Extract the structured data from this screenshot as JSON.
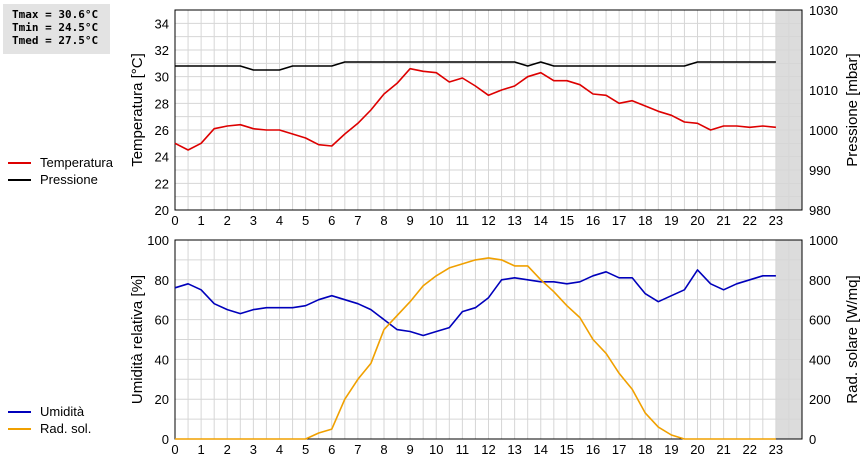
{
  "stats": {
    "tmax": "Tmax = 30.6°C",
    "tmin": "Tmin = 24.5°C",
    "tmed": "Tmed = 27.5°C"
  },
  "legend_top": [
    {
      "label": "Temperatura",
      "color": "#dd0000"
    },
    {
      "label": "Pressione",
      "color": "#000000"
    }
  ],
  "legend_bottom": [
    {
      "label": "Umidità",
      "color": "#0000bb"
    },
    {
      "label": "Rad. sol.",
      "color": "#f0a000"
    }
  ],
  "chart_data": [
    {
      "type": "line",
      "xlabel": "",
      "ylabel": "Temperatura [°C]",
      "y2label": "Pressione [mbar]",
      "x_ticks": [
        "0",
        "1",
        "2",
        "3",
        "4",
        "5",
        "6",
        "7",
        "8",
        "9",
        "10",
        "11",
        "12",
        "13",
        "14",
        "15",
        "16",
        "17",
        "18",
        "19",
        "20",
        "21",
        "22",
        "23"
      ],
      "xlim": [
        0,
        24
      ],
      "ylim": [
        20,
        35
      ],
      "y_ticks": [
        20,
        22,
        24,
        26,
        28,
        30,
        32,
        34
      ],
      "y2lim": [
        980,
        1030
      ],
      "y2_ticks": [
        980,
        990,
        1000,
        1010,
        1020,
        1030
      ],
      "shaded_range": [
        23,
        24
      ],
      "series": [
        {
          "name": "Temperatura",
          "axis": "left",
          "color": "#dd0000",
          "points": [
            [
              0,
              25.0
            ],
            [
              0.5,
              24.5
            ],
            [
              1,
              25.0
            ],
            [
              1.5,
              26.1
            ],
            [
              2,
              26.3
            ],
            [
              2.5,
              26.4
            ],
            [
              3,
              26.1
            ],
            [
              3.5,
              26.0
            ],
            [
              4,
              26.0
            ],
            [
              4.5,
              25.7
            ],
            [
              5,
              25.4
            ],
            [
              5.5,
              24.9
            ],
            [
              6,
              24.8
            ],
            [
              6.5,
              25.7
            ],
            [
              7,
              26.5
            ],
            [
              7.5,
              27.5
            ],
            [
              8,
              28.7
            ],
            [
              8.5,
              29.5
            ],
            [
              9,
              30.6
            ],
            [
              9.5,
              30.4
            ],
            [
              10,
              30.3
            ],
            [
              10.5,
              29.6
            ],
            [
              11,
              29.9
            ],
            [
              11.5,
              29.3
            ],
            [
              12,
              28.6
            ],
            [
              12.5,
              29.0
            ],
            [
              13,
              29.3
            ],
            [
              13.5,
              30.0
            ],
            [
              14,
              30.3
            ],
            [
              14.5,
              29.7
            ],
            [
              15,
              29.7
            ],
            [
              15.5,
              29.4
            ],
            [
              16,
              28.7
            ],
            [
              16.5,
              28.6
            ],
            [
              17,
              28.0
            ],
            [
              17.5,
              28.2
            ],
            [
              18,
              27.8
            ],
            [
              18.5,
              27.4
            ],
            [
              19,
              27.1
            ],
            [
              19.5,
              26.6
            ],
            [
              20,
              26.5
            ],
            [
              20.5,
              26.0
            ],
            [
              21,
              26.3
            ],
            [
              21.5,
              26.3
            ],
            [
              22,
              26.2
            ],
            [
              22.5,
              26.3
            ],
            [
              23,
              26.2
            ]
          ]
        },
        {
          "name": "Pressione",
          "axis": "right",
          "color": "#000000",
          "points": [
            [
              0,
              1016
            ],
            [
              2.5,
              1016
            ],
            [
              3,
              1015
            ],
            [
              4,
              1015
            ],
            [
              4.5,
              1016
            ],
            [
              6,
              1016
            ],
            [
              6.5,
              1017
            ],
            [
              13,
              1017
            ],
            [
              13.5,
              1016
            ],
            [
              14,
              1017
            ],
            [
              14.5,
              1016
            ],
            [
              19.5,
              1016
            ],
            [
              20,
              1017
            ],
            [
              23,
              1017
            ]
          ]
        }
      ]
    },
    {
      "type": "line",
      "xlabel": "",
      "ylabel": "Umidità relativa [%]",
      "y2label": "Rad. solare [W/mq]",
      "x_ticks": [
        "0",
        "1",
        "2",
        "3",
        "4",
        "5",
        "6",
        "7",
        "8",
        "9",
        "10",
        "11",
        "12",
        "13",
        "14",
        "15",
        "16",
        "17",
        "18",
        "19",
        "20",
        "21",
        "22",
        "23"
      ],
      "xlim": [
        0,
        24
      ],
      "ylim": [
        0,
        100
      ],
      "y_ticks": [
        0,
        20,
        40,
        60,
        80,
        100
      ],
      "y2lim": [
        0,
        1000
      ],
      "y2_ticks": [
        0,
        200,
        400,
        600,
        800,
        1000
      ],
      "shaded_range": [
        23,
        24
      ],
      "series": [
        {
          "name": "Umidità",
          "axis": "left",
          "color": "#0000bb",
          "points": [
            [
              0,
              76
            ],
            [
              0.5,
              78
            ],
            [
              1,
              75
            ],
            [
              1.5,
              68
            ],
            [
              2,
              65
            ],
            [
              2.5,
              63
            ],
            [
              3,
              65
            ],
            [
              3.5,
              66
            ],
            [
              4,
              66
            ],
            [
              4.5,
              66
            ],
            [
              5,
              67
            ],
            [
              5.5,
              70
            ],
            [
              6,
              72
            ],
            [
              6.5,
              70
            ],
            [
              7,
              68
            ],
            [
              7.5,
              65
            ],
            [
              8,
              60
            ],
            [
              8.5,
              55
            ],
            [
              9,
              54
            ],
            [
              9.5,
              52
            ],
            [
              10,
              54
            ],
            [
              10.5,
              56
            ],
            [
              11,
              64
            ],
            [
              11.5,
              66
            ],
            [
              12,
              71
            ],
            [
              12.5,
              80
            ],
            [
              13,
              81
            ],
            [
              13.5,
              80
            ],
            [
              14,
              79
            ],
            [
              14.5,
              79
            ],
            [
              15,
              78
            ],
            [
              15.5,
              79
            ],
            [
              16,
              82
            ],
            [
              16.5,
              84
            ],
            [
              17,
              81
            ],
            [
              17.5,
              81
            ],
            [
              18,
              73
            ],
            [
              18.5,
              69
            ],
            [
              19,
              72
            ],
            [
              19.5,
              75
            ],
            [
              20,
              85
            ],
            [
              20.5,
              78
            ],
            [
              21,
              75
            ],
            [
              21.5,
              78
            ],
            [
              22,
              80
            ],
            [
              22.5,
              82
            ],
            [
              23,
              82
            ]
          ]
        },
        {
          "name": "Rad. sol.",
          "axis": "right",
          "color": "#f0a000",
          "points": [
            [
              0,
              0
            ],
            [
              5,
              0
            ],
            [
              5.5,
              30
            ],
            [
              6,
              50
            ],
            [
              6.5,
              200
            ],
            [
              7,
              300
            ],
            [
              7.5,
              380
            ],
            [
              8,
              550
            ],
            [
              8.5,
              620
            ],
            [
              9,
              690
            ],
            [
              9.5,
              770
            ],
            [
              10,
              820
            ],
            [
              10.5,
              860
            ],
            [
              11,
              880
            ],
            [
              11.5,
              900
            ],
            [
              12,
              910
            ],
            [
              12.5,
              900
            ],
            [
              13,
              870
            ],
            [
              13.5,
              870
            ],
            [
              14,
              800
            ],
            [
              14.5,
              740
            ],
            [
              15,
              670
            ],
            [
              15.5,
              610
            ],
            [
              16,
              500
            ],
            [
              16.5,
              430
            ],
            [
              17,
              330
            ],
            [
              17.5,
              250
            ],
            [
              18,
              130
            ],
            [
              18.5,
              60
            ],
            [
              19,
              20
            ],
            [
              19.5,
              0
            ],
            [
              23,
              0
            ]
          ]
        }
      ]
    }
  ]
}
